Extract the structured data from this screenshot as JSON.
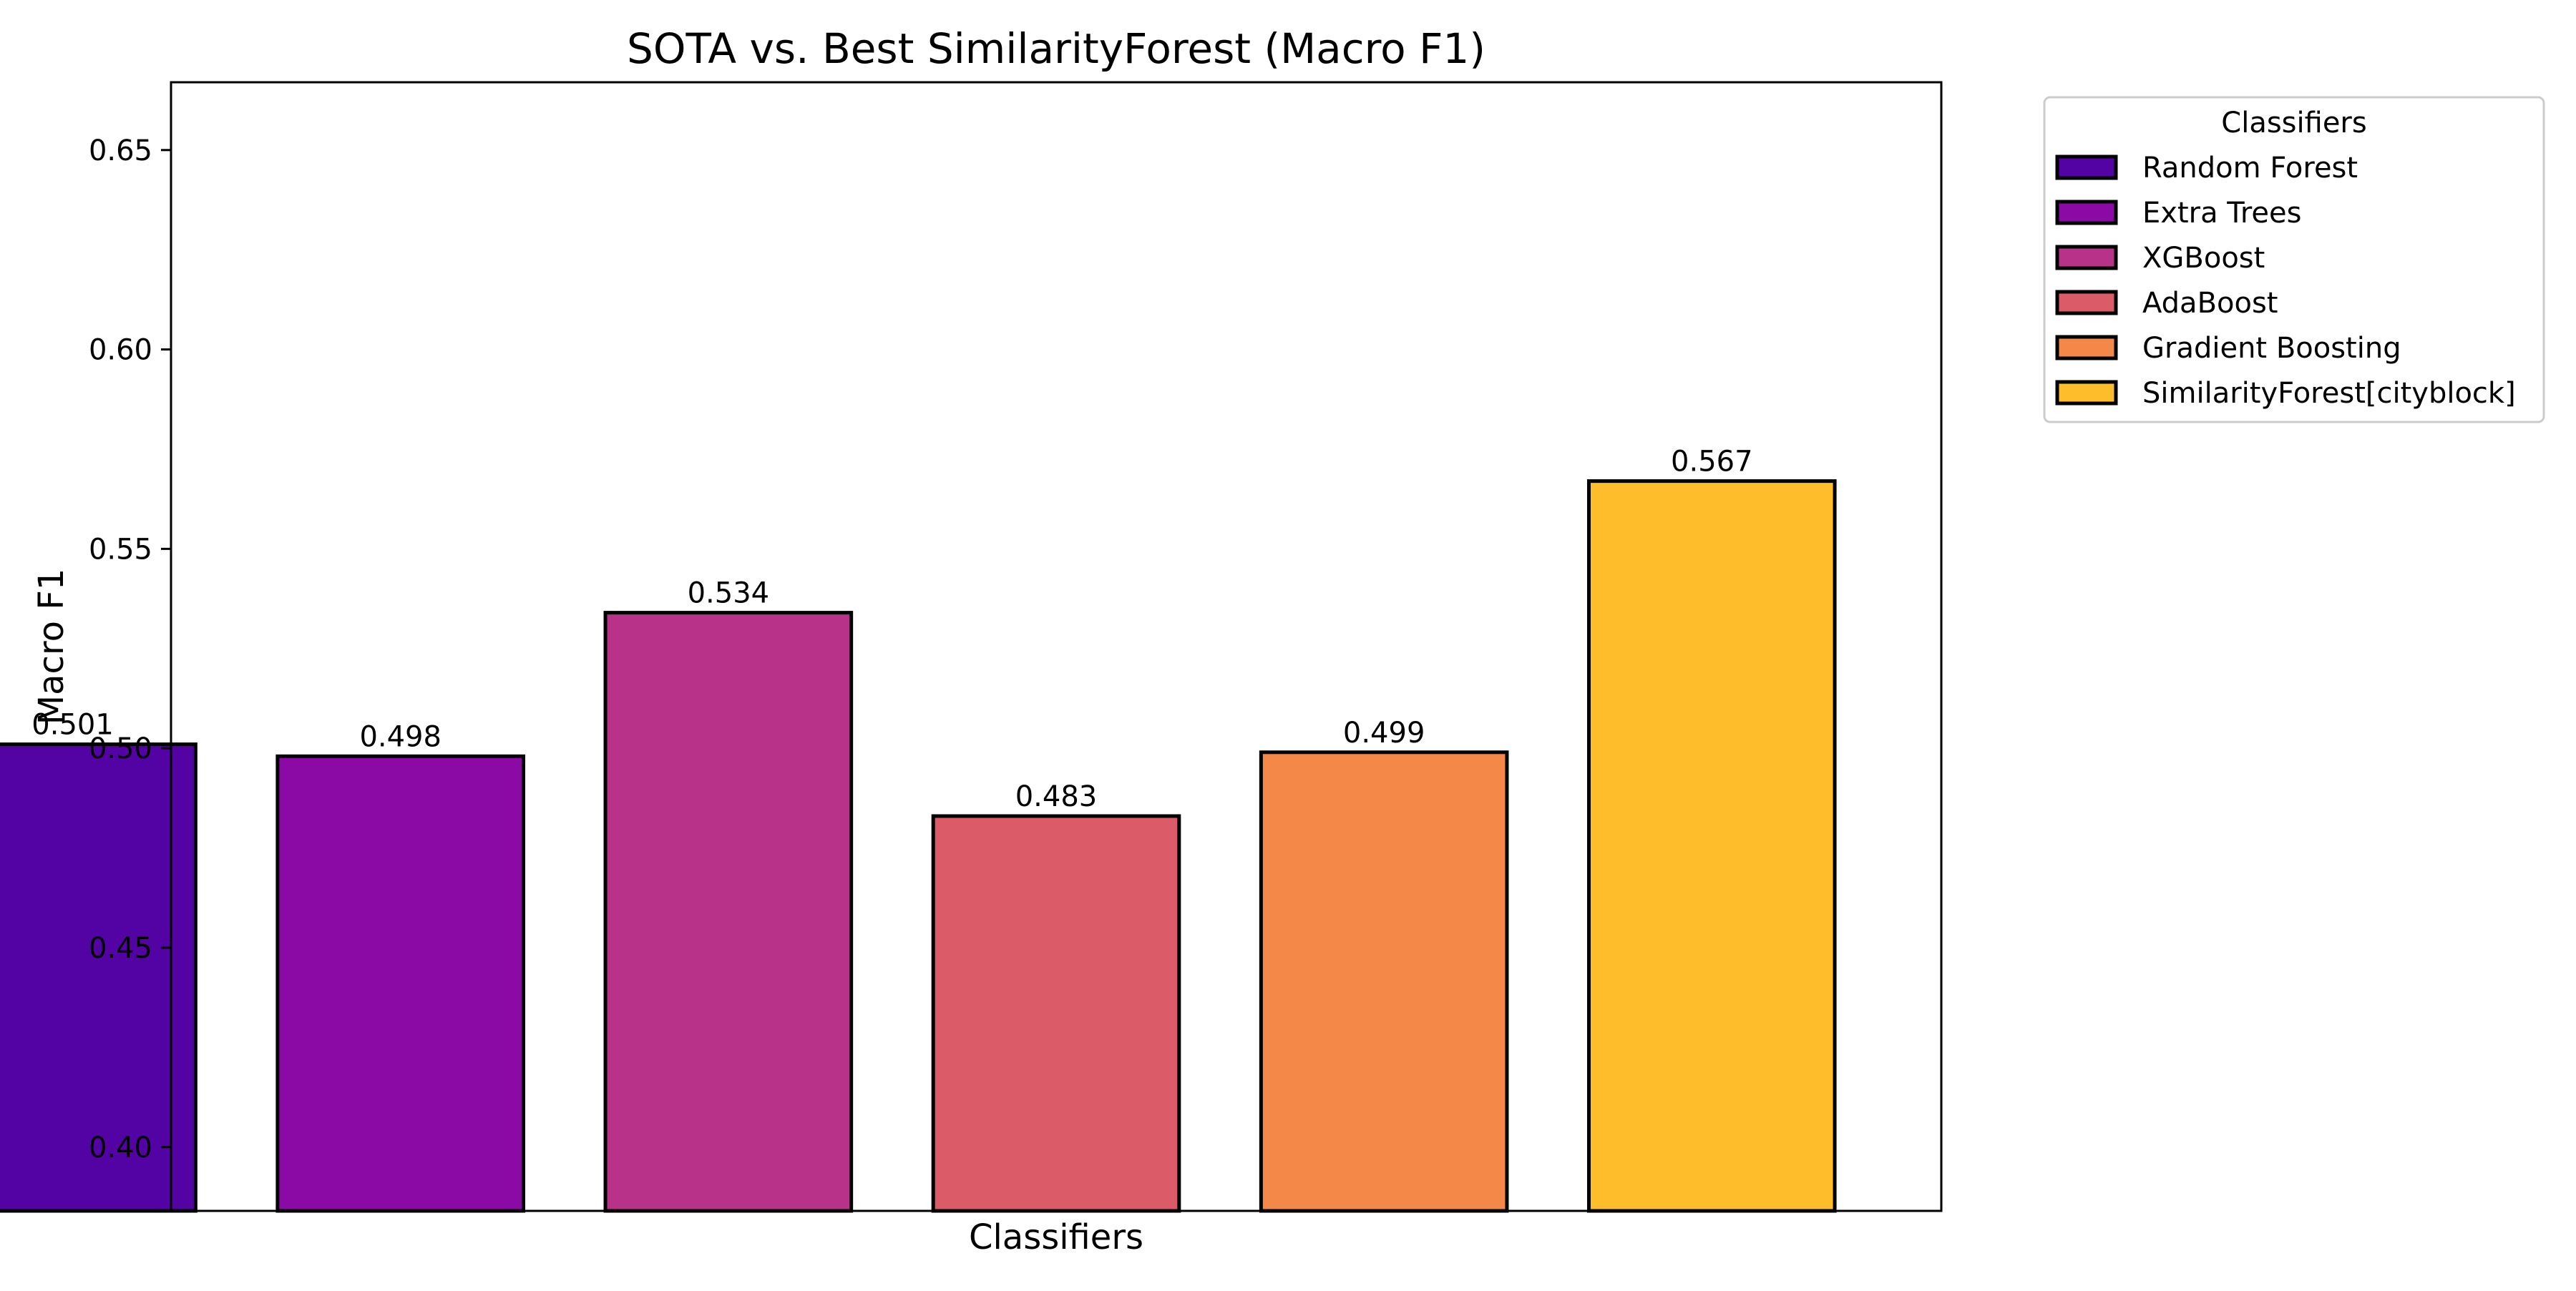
{
  "chart_data": {
    "type": "bar",
    "title": "SOTA vs. Best SimilarityForest (Macro F1)",
    "xlabel": "Classifiers",
    "ylabel": "Macro F1",
    "categories": [
      "Random Forest",
      "Extra Trees",
      "XGBoost",
      "AdaBoost",
      "Gradient Boosting",
      "SimilarityForest[cityblock]"
    ],
    "values": [
      0.501,
      0.498,
      0.534,
      0.483,
      0.499,
      0.567
    ],
    "data_labels": [
      "0.501",
      "0.498",
      "0.534",
      "0.483",
      "0.499",
      "0.567"
    ],
    "colors": [
      "#5302a3",
      "#8b0aa5",
      "#b83289",
      "#db5c68",
      "#f48849",
      "#febd2a"
    ],
    "ylim": [
      0.384,
      0.667
    ],
    "yticks": [
      0.4,
      0.45,
      0.5,
      0.55,
      0.6,
      0.65
    ],
    "ytick_labels": [
      "0.40",
      "0.45",
      "0.50",
      "0.55",
      "0.60",
      "0.65"
    ],
    "grid": false,
    "legend": {
      "title": "Classifiers",
      "placement": "outside-upper-right",
      "entries": [
        "Random Forest",
        "Extra Trees",
        "XGBoost",
        "AdaBoost",
        "Gradient Boosting",
        "SimilarityForest[cityblock]"
      ]
    }
  }
}
